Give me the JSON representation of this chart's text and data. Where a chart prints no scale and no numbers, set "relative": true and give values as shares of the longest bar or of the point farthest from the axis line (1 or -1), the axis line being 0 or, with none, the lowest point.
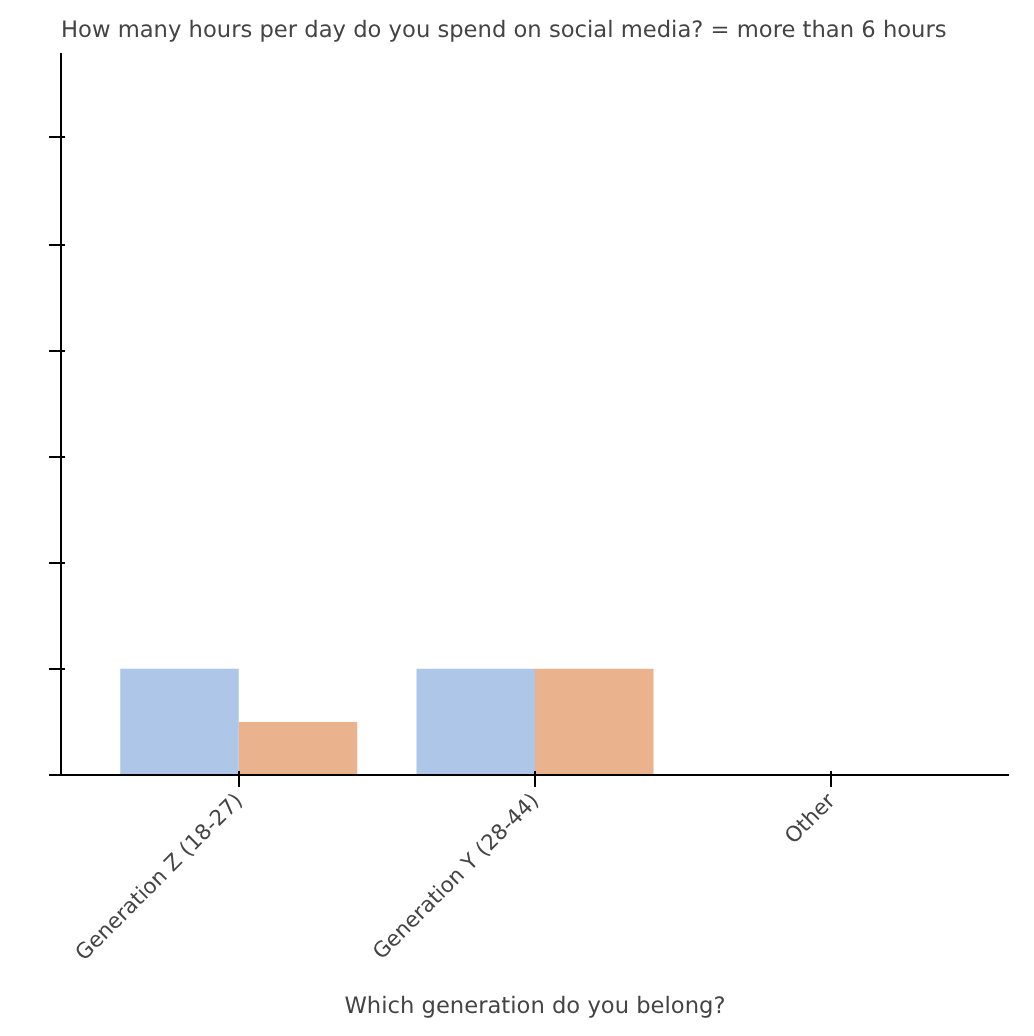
{
  "chart_data": {
    "type": "bar",
    "title": "How many hours per day do you spend on social media? = more than 6 hours",
    "xlabel": "Which generation do you belong?",
    "relative": true,
    "categories": [
      "Generation Z (18-27)",
      "Generation Y (28-44)",
      "Other"
    ],
    "series": [
      {
        "color": "#aec7e8",
        "values": [
          1,
          1,
          null
        ]
      },
      {
        "color": "#ebb28e",
        "values": [
          0.5,
          1,
          null
        ]
      }
    ],
    "grid": false
  }
}
